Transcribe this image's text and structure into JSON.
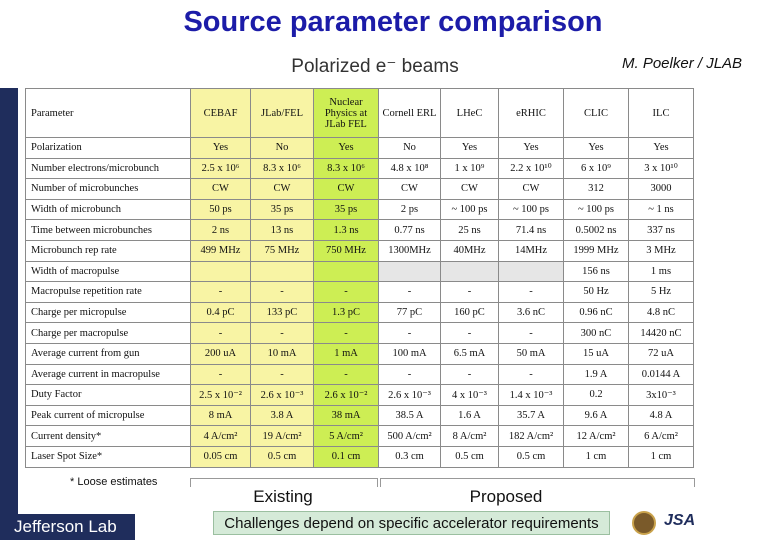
{
  "header": {
    "title": "Source parameter comparison",
    "subtitle": "Polarized e⁻ beams",
    "author": "M. Poelker / JLAB"
  },
  "table": {
    "columns": [
      "Parameter",
      "CEBAF",
      "JLab/FEL",
      "Nuclear Physics at JLab FEL",
      "Cornell ERL",
      "LHeC",
      "eRHIC",
      "CLIC",
      "ILC"
    ],
    "rows": [
      {
        "label": "Polarization",
        "cells": [
          "Yes",
          "No",
          "Yes",
          "No",
          "Yes",
          "Yes",
          "Yes",
          "Yes"
        ]
      },
      {
        "label": "Number electrons/microbunch",
        "cells": [
          "2.5 x 10⁶",
          "8.3 x 10⁶",
          "8.3 x 10⁶",
          "4.8 x 10⁸",
          "1 x 10⁹",
          "2.2 x 10¹⁰",
          "6 x 10⁹",
          "3 x 10¹⁰"
        ]
      },
      {
        "label": "Number of microbunches",
        "cells": [
          "CW",
          "CW",
          "CW",
          "CW",
          "CW",
          "CW",
          "312",
          "3000"
        ]
      },
      {
        "label": "Width of microbunch",
        "cells": [
          "50 ps",
          "35 ps",
          "35 ps",
          "2 ps",
          "~ 100 ps",
          "~ 100 ps",
          "~ 100 ps",
          "~ 1 ns"
        ]
      },
      {
        "label": "Time between microbunches",
        "cells": [
          "2 ns",
          "13 ns",
          "1.3 ns",
          "0.77 ns",
          "25 ns",
          "71.4 ns",
          "0.5002 ns",
          "337 ns"
        ]
      },
      {
        "label": "Microbunch rep rate",
        "cells": [
          "499 MHz",
          "75 MHz",
          "750 MHz",
          "1300MHz",
          "40MHz",
          "14MHz",
          "1999 MHz",
          "3 MHz"
        ]
      },
      {
        "label": "Width of macropulse",
        "cells": [
          null,
          null,
          null,
          null,
          null,
          null,
          "156 ns",
          "1 ms"
        ]
      },
      {
        "label": "Macropulse repetition rate",
        "cells": [
          "-",
          "-",
          "-",
          "-",
          "-",
          "-",
          "50 Hz",
          "5 Hz"
        ]
      },
      {
        "label": "Charge per micropulse",
        "cells": [
          "0.4 pC",
          "133 pC",
          "1.3 pC",
          "77 pC",
          "160 pC",
          "3.6 nC",
          "0.96 nC",
          "4.8 nC"
        ]
      },
      {
        "label": "Charge per macropulse",
        "cells": [
          "-",
          "-",
          "-",
          "-",
          "-",
          "-",
          "300 nC",
          "14420 nC"
        ]
      },
      {
        "label": "Average current from gun",
        "cells": [
          "200 uA",
          "10 mA",
          "1 mA",
          "100 mA",
          "6.5 mA",
          "50 mA",
          "15 uA",
          "72 uA"
        ]
      },
      {
        "label": "Average current in macropulse",
        "cells": [
          "-",
          "-",
          "-",
          "-",
          "-",
          "-",
          "1.9 A",
          "0.0144 A"
        ]
      },
      {
        "label": "Duty Factor",
        "cells": [
          "2.5 x 10⁻²",
          "2.6 x 10⁻³",
          "2.6 x 10⁻²",
          "2.6 x 10⁻³",
          "4 x 10⁻³",
          "1.4 x 10⁻³",
          "0.2",
          "3x10⁻³"
        ]
      },
      {
        "label": "Peak current of micropulse",
        "cells": [
          "8 mA",
          "3.8 A",
          "38 mA",
          "38.5 A",
          "1.6 A",
          "35.7 A",
          "9.6 A",
          "4.8 A"
        ]
      },
      {
        "label": "Current density*",
        "cells": [
          "4 A/cm²",
          "19 A/cm²",
          "5  A/cm²",
          "500 A/cm²",
          "8  A/cm²",
          "182 A/cm²",
          "12 A/cm²",
          "6 A/cm²"
        ]
      },
      {
        "label": "Laser Spot Size*",
        "cells": [
          "0.05 cm",
          "0.5 cm",
          "0.1 cm",
          "0.3 cm",
          "0.5 cm",
          "0.5 cm",
          "1 cm",
          "1 cm"
        ]
      }
    ]
  },
  "footer": {
    "note": "* Loose estimates",
    "existing": "Existing",
    "proposed": "Proposed",
    "challenge": "Challenges depend on specific accelerator requirements",
    "logo": "Jefferson Lab",
    "partner": "JSA"
  }
}
